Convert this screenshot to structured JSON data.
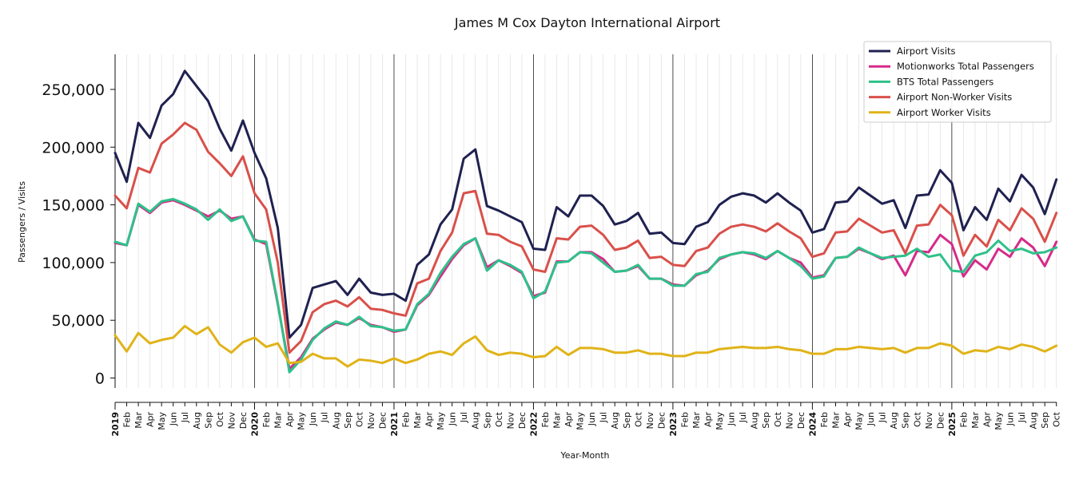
{
  "chart_data": {
    "type": "line",
    "title": "James M Cox Dayton International Airport",
    "xlabel": "Year-Month",
    "ylabel": "Passengers / Visits",
    "ylim": [
      -20000,
      280000
    ],
    "yticks": [
      0,
      50000,
      100000,
      150000,
      200000,
      250000
    ],
    "ytick_labels": [
      "0",
      "50,000",
      "100,000",
      "150,000",
      "200,000",
      "250,000"
    ],
    "grid": "vertical minor gridlines per month; dark vertical line at each January",
    "legend_position": "top-right",
    "x_start": "2019-01",
    "x": [
      "2019-01",
      "2019-02",
      "2019-03",
      "2019-04",
      "2019-05",
      "2019-06",
      "2019-07",
      "2019-08",
      "2019-09",
      "2019-10",
      "2019-11",
      "2019-12",
      "2020-01",
      "2020-02",
      "2020-03",
      "2020-04",
      "2020-05",
      "2020-06",
      "2020-07",
      "2020-08",
      "2020-09",
      "2020-10",
      "2020-11",
      "2020-12",
      "2021-01",
      "2021-02",
      "2021-03",
      "2021-04",
      "2021-05",
      "2021-06",
      "2021-07",
      "2021-08",
      "2021-09",
      "2021-10",
      "2021-11",
      "2021-12",
      "2022-01",
      "2022-02",
      "2022-03",
      "2022-04",
      "2022-05",
      "2022-06",
      "2022-07",
      "2022-08",
      "2022-09",
      "2022-10",
      "2022-11",
      "2022-12",
      "2023-01",
      "2023-02",
      "2023-03",
      "2023-04",
      "2023-05",
      "2023-06",
      "2023-07",
      "2023-08",
      "2023-09",
      "2023-10",
      "2023-11",
      "2023-12",
      "2024-01",
      "2024-02",
      "2024-03",
      "2024-04",
      "2024-05",
      "2024-06",
      "2024-07",
      "2024-08",
      "2024-09",
      "2024-10",
      "2024-11",
      "2024-12",
      "2025-01",
      "2025-02",
      "2025-03",
      "2025-04",
      "2025-05",
      "2025-06",
      "2025-07",
      "2025-08",
      "2025-09",
      "2025-10"
    ],
    "x_tick_labels": [
      "2019",
      "Feb",
      "Mar",
      "Apr",
      "May",
      "Jun",
      "Jul",
      "Aug",
      "Sep",
      "Oct",
      "Nov",
      "Dec",
      "2020",
      "Feb",
      "Mar",
      "Apr",
      "May",
      "Jun",
      "Jul",
      "Aug",
      "Sep",
      "Oct",
      "Nov",
      "Dec",
      "2021",
      "Feb",
      "Mar",
      "Apr",
      "May",
      "Jun",
      "Jul",
      "Aug",
      "Sep",
      "Oct",
      "Nov",
      "Dec",
      "2022",
      "Feb",
      "Mar",
      "Apr",
      "May",
      "Jun",
      "Jul",
      "Aug",
      "Sep",
      "Oct",
      "Nov",
      "Dec",
      "2023",
      "Feb",
      "Mar",
      "Apr",
      "May",
      "Jun",
      "Jul",
      "Aug",
      "Sep",
      "Oct",
      "Nov",
      "Dec",
      "2024",
      "Feb",
      "Mar",
      "Apr",
      "May",
      "Jun",
      "Jul",
      "Aug",
      "Sep",
      "Oct",
      "Nov",
      "Dec",
      "2025",
      "Feb",
      "Mar",
      "Apr",
      "May",
      "Jun",
      "Jul",
      "Aug",
      "Sep",
      "Oct"
    ],
    "series": [
      {
        "name": "Airport Visits",
        "color": "#1f2150",
        "values": [
          195000,
          170000,
          221000,
          208000,
          236000,
          246000,
          266000,
          253000,
          240000,
          216000,
          197000,
          223000,
          195000,
          173000,
          130000,
          35000,
          46000,
          78000,
          81000,
          84000,
          72000,
          86000,
          74000,
          72000,
          73000,
          67000,
          98000,
          107000,
          133000,
          146000,
          190000,
          198000,
          149000,
          145000,
          140000,
          135000,
          112000,
          111000,
          148000,
          140000,
          158000,
          158000,
          149000,
          133000,
          136000,
          143000,
          125000,
          126000,
          117000,
          116000,
          131000,
          135000,
          150000,
          157000,
          160000,
          158000,
          152000,
          160000,
          152000,
          145000,
          126000,
          129000,
          152000,
          153000,
          165000,
          158000,
          151000,
          154000,
          130000,
          158000,
          159000,
          180000,
          169000,
          128000,
          148000,
          137000,
          164000,
          153000,
          176000,
          165000,
          142000,
          172000
        ]
      },
      {
        "name": "Motionworks Total Passengers",
        "color": "#d62a8a",
        "values": [
          117000,
          115000,
          150000,
          143000,
          152000,
          154000,
          150000,
          145000,
          140000,
          145000,
          138000,
          140000,
          120000,
          116000,
          64000,
          8000,
          18000,
          34000,
          42000,
          48000,
          46000,
          52000,
          46000,
          44000,
          40000,
          42000,
          63000,
          72000,
          88000,
          103000,
          115000,
          121000,
          96000,
          102000,
          97000,
          91000,
          71000,
          74000,
          101000,
          101000,
          109000,
          109000,
          103000,
          92000,
          93000,
          97000,
          86000,
          86000,
          81000,
          80000,
          89000,
          93000,
          103000,
          107000,
          109000,
          107000,
          103000,
          110000,
          104000,
          100000,
          87000,
          89000,
          104000,
          105000,
          112000,
          108000,
          103000,
          106000,
          89000,
          110000,
          109000,
          124000,
          116000,
          88000,
          102000,
          94000,
          112000,
          105000,
          121000,
          113000,
          97000,
          118000
        ]
      },
      {
        "name": "BTS Total Passengers",
        "color": "#2ec18a",
        "values": [
          118000,
          115000,
          151000,
          144000,
          153000,
          155000,
          151000,
          146000,
          137000,
          146000,
          136000,
          140000,
          119000,
          118000,
          65000,
          5000,
          16000,
          33000,
          43000,
          49000,
          46000,
          53000,
          45000,
          44000,
          41000,
          42000,
          64000,
          73000,
          91000,
          105000,
          116000,
          121000,
          93000,
          102000,
          98000,
          92000,
          69000,
          75000,
          100000,
          101000,
          109000,
          108000,
          100000,
          92000,
          93000,
          98000,
          86000,
          86000,
          80000,
          80000,
          90000,
          92000,
          104000,
          107000,
          109000,
          108000,
          104000,
          110000,
          104000,
          97000,
          86000,
          88000,
          104000,
          105000,
          113000,
          108000,
          104000,
          105000,
          106000,
          112000,
          105000,
          107000,
          93000,
          92000,
          106000,
          109000,
          119000,
          110000,
          112000,
          108000,
          109000,
          113000
        ]
      },
      {
        "name": "Airport Non-Worker Visits",
        "color": "#d9504a",
        "values": [
          158000,
          147000,
          182000,
          178000,
          203000,
          211000,
          221000,
          215000,
          196000,
          186000,
          175000,
          192000,
          160000,
          146000,
          100000,
          22000,
          32000,
          57000,
          64000,
          67000,
          62000,
          70000,
          60000,
          59000,
          56000,
          54000,
          82000,
          86000,
          110000,
          126000,
          160000,
          162000,
          125000,
          124000,
          118000,
          114000,
          94000,
          92000,
          121000,
          120000,
          131000,
          132000,
          124000,
          111000,
          113000,
          119000,
          104000,
          105000,
          98000,
          97000,
          110000,
          113000,
          125000,
          131000,
          133000,
          131000,
          127000,
          134000,
          127000,
          121000,
          105000,
          108000,
          126000,
          127000,
          138000,
          132000,
          126000,
          128000,
          108000,
          132000,
          133000,
          150000,
          141000,
          106000,
          124000,
          114000,
          137000,
          128000,
          147000,
          138000,
          118000,
          143000
        ]
      },
      {
        "name": "Airport Worker Visits",
        "color": "#e0b318",
        "values": [
          37000,
          23000,
          39000,
          30000,
          33000,
          35000,
          45000,
          38000,
          44000,
          29000,
          22000,
          31000,
          35000,
          27000,
          30000,
          13000,
          14000,
          21000,
          17000,
          17000,
          10000,
          16000,
          15000,
          13000,
          17000,
          13000,
          16000,
          21000,
          23000,
          20000,
          30000,
          36000,
          24000,
          20000,
          22000,
          21000,
          18000,
          19000,
          27000,
          20000,
          26000,
          26000,
          25000,
          22000,
          22000,
          24000,
          21000,
          21000,
          19000,
          19000,
          22000,
          22000,
          25000,
          26000,
          27000,
          26000,
          26000,
          27000,
          25000,
          24000,
          21000,
          21000,
          25000,
          25000,
          27000,
          26000,
          25000,
          26000,
          22000,
          26000,
          26000,
          30000,
          28000,
          21000,
          24000,
          23000,
          27000,
          25000,
          29000,
          27000,
          23000,
          28000
        ]
      }
    ]
  }
}
